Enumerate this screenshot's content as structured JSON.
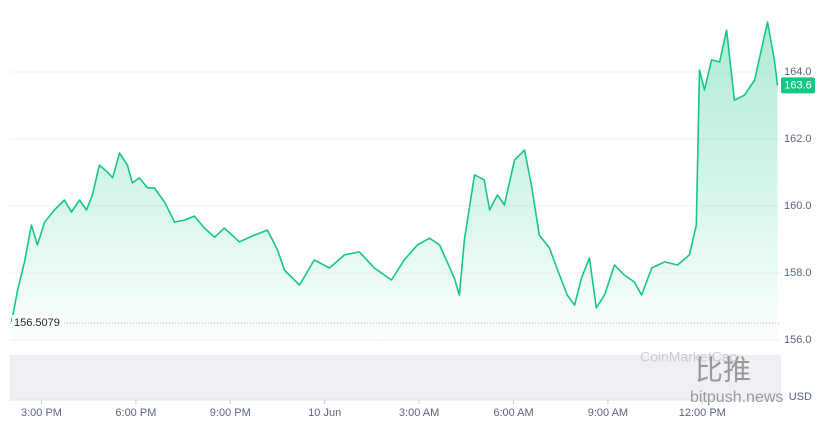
{
  "chart_data": {
    "type": "area",
    "color": "#16c784",
    "x": [
      -0.95,
      -0.76,
      -0.54,
      -0.32,
      -0.13,
      0.1,
      0.41,
      0.73,
      0.95,
      1.21,
      1.43,
      1.62,
      1.84,
      2.1,
      2.26,
      2.48,
      2.73,
      2.89,
      3.11,
      3.37,
      3.59,
      3.91,
      4.23,
      4.54,
      4.86,
      5.18,
      5.5,
      5.81,
      6.29,
      6.77,
      7.18,
      7.5,
      7.72,
      8.2,
      8.67,
      9.15,
      9.63,
      10.1,
      10.58,
      11.12,
      11.53,
      11.95,
      12.33,
      12.65,
      13.12,
      13.28,
      13.44,
      13.76,
      14.07,
      14.24,
      14.49,
      14.71,
      15.03,
      15.35,
      15.57,
      15.82,
      16.14,
      16.4,
      16.71,
      16.94,
      17.16,
      17.41,
      17.63,
      17.89,
      18.21,
      18.52,
      18.84,
      19.07,
      19.39,
      19.8,
      20.21,
      20.59,
      20.81,
      20.91,
      21.07,
      21.29,
      21.55,
      21.77,
      22.02,
      22.34,
      22.66,
      23.07,
      23.29,
      23.39
    ],
    "values": [
      156.54,
      157.49,
      158.33,
      159.43,
      158.84,
      159.52,
      159.88,
      160.18,
      159.82,
      160.18,
      159.88,
      160.33,
      161.22,
      161.01,
      160.84,
      161.58,
      161.22,
      160.69,
      160.84,
      160.54,
      160.54,
      160.12,
      159.52,
      159.58,
      159.7,
      159.34,
      159.07,
      159.34,
      158.93,
      159.13,
      159.28,
      158.69,
      158.09,
      157.64,
      158.39,
      158.15,
      158.54,
      158.63,
      158.15,
      157.79,
      158.39,
      158.84,
      159.04,
      158.84,
      157.85,
      157.34,
      158.99,
      160.93,
      160.78,
      159.88,
      160.33,
      160.03,
      161.37,
      161.67,
      160.63,
      159.13,
      158.75,
      158.09,
      157.34,
      157.04,
      157.85,
      158.45,
      156.96,
      157.34,
      158.24,
      157.94,
      157.73,
      157.34,
      158.15,
      158.33,
      158.24,
      158.54,
      159.43,
      164.06,
      163.46,
      164.36,
      164.3,
      165.25,
      163.16,
      163.31,
      163.76,
      165.49,
      164.36,
      163.6
    ],
    "xlim": [
      -1,
      23.5
    ],
    "xticks": [
      {
        "value": 0,
        "label": "3:00 PM"
      },
      {
        "value": 3,
        "label": "6:00 PM"
      },
      {
        "value": 6,
        "label": "9:00 PM"
      },
      {
        "value": 9,
        "label": "10 Jun"
      },
      {
        "value": 12,
        "label": "3:00 AM"
      },
      {
        "value": 15,
        "label": "6:00 AM"
      },
      {
        "value": 18,
        "label": "9:00 AM"
      },
      {
        "value": 21,
        "label": "12:00 PM"
      }
    ],
    "ylim": [
      156,
      166
    ],
    "yticks": [
      {
        "value": 156,
        "label": "156.0"
      },
      {
        "value": 158,
        "label": "158.0"
      },
      {
        "value": 160,
        "label": "160.0"
      },
      {
        "value": 162,
        "label": "162.0"
      },
      {
        "value": 164,
        "label": "164.0"
      }
    ],
    "grid": true,
    "current_price": 163.6,
    "reference_price": 156.5079,
    "currency_label": "USD",
    "watermarks": [
      "CoinMarketCap",
      "比推",
      "bitpush.news"
    ]
  }
}
